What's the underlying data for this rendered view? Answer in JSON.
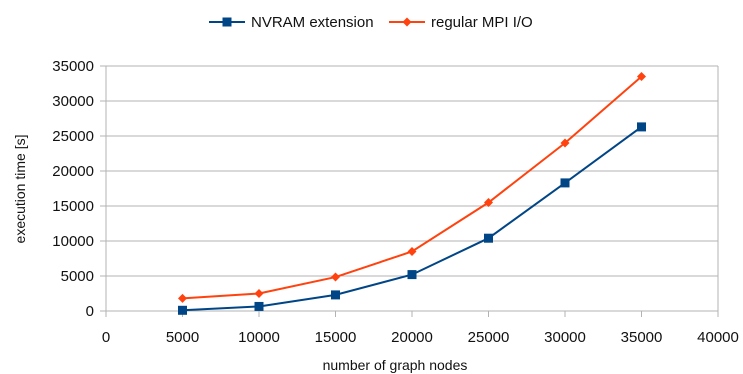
{
  "chart_data": {
    "type": "line",
    "xlabel": "number of graph nodes",
    "ylabel": "execution time [s]",
    "xlim": [
      0,
      40000
    ],
    "ylim": [
      0,
      35000
    ],
    "x_ticks": [
      "0",
      "5000",
      "10000",
      "15000",
      "20000",
      "25000",
      "30000",
      "35000",
      "40000"
    ],
    "y_ticks": [
      "0",
      "5000",
      "10000",
      "15000",
      "20000",
      "25000",
      "30000",
      "35000"
    ],
    "grid": "horizontal",
    "legend_position": "top",
    "x": [
      5000,
      10000,
      15000,
      20000,
      25000,
      30000,
      35000
    ],
    "series": [
      {
        "name": "NVRAM extension",
        "color": "#004586",
        "marker": "square",
        "values": [
          100,
          650,
          2300,
          5200,
          10400,
          18300,
          26300
        ]
      },
      {
        "name": "regular MPI I/O",
        "color": "#ff420e",
        "marker": "diamond",
        "values": [
          1800,
          2500,
          4850,
          8500,
          15500,
          24000,
          33500
        ]
      }
    ]
  }
}
